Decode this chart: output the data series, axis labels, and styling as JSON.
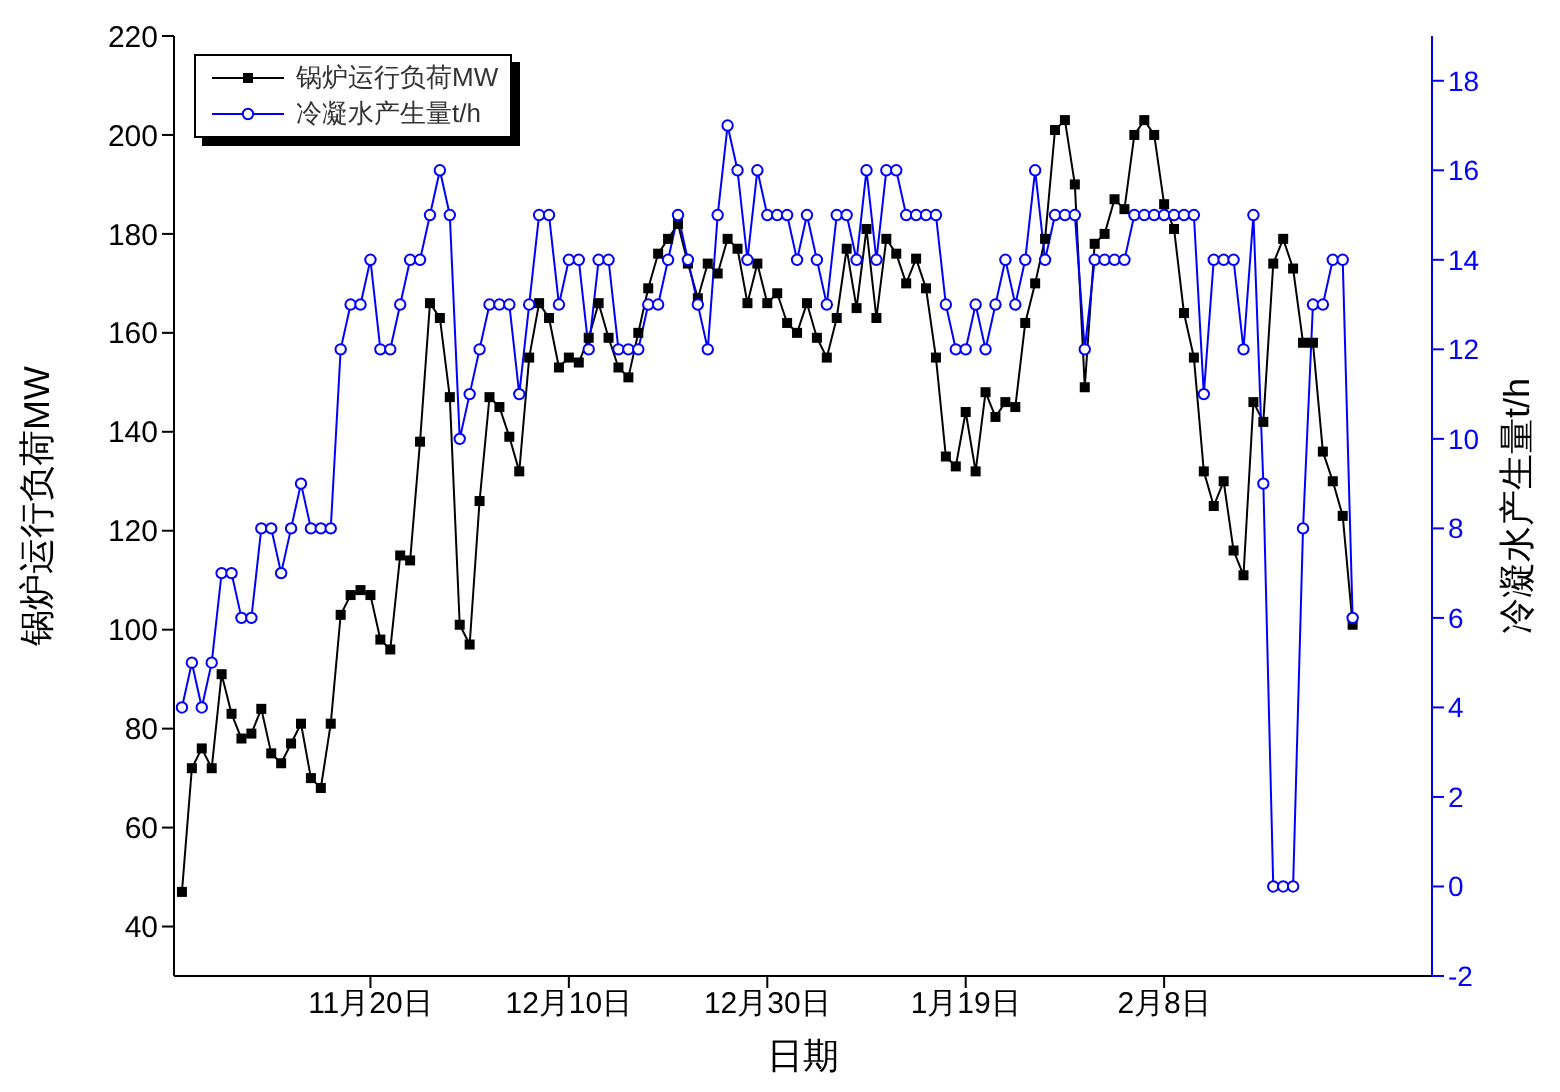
{
  "chart_data": {
    "type": "line",
    "xlabel": "日期",
    "ylabel": "锅炉运行负荷MW",
    "y2label": "冷凝水产生量t/h",
    "categories": [
      null,
      null,
      null,
      null,
      null,
      null,
      null,
      null,
      null,
      null,
      null,
      null,
      null,
      null,
      null,
      null,
      null,
      null,
      null,
      "11月20日",
      null,
      null,
      null,
      null,
      null,
      null,
      null,
      null,
      null,
      null,
      null,
      null,
      null,
      null,
      null,
      null,
      null,
      null,
      null,
      "12月10日",
      null,
      null,
      null,
      null,
      null,
      null,
      null,
      null,
      null,
      null,
      null,
      null,
      null,
      null,
      null,
      null,
      null,
      null,
      null,
      "12月30日",
      null,
      null,
      null,
      null,
      null,
      null,
      null,
      null,
      null,
      null,
      null,
      null,
      null,
      null,
      null,
      null,
      null,
      null,
      null,
      "1月19日",
      null,
      null,
      null,
      null,
      null,
      null,
      null,
      null,
      null,
      null,
      null,
      null,
      null,
      null,
      null,
      null,
      null,
      null,
      null,
      "2月8日",
      null,
      null,
      null,
      null,
      null,
      null,
      null,
      null,
      null,
      null,
      null,
      null,
      null,
      null,
      null,
      null,
      null,
      null,
      null
    ],
    "series": [
      {
        "name": "锅炉运行负荷MW",
        "color": "#000000",
        "marker": "square",
        "values": [
          47,
          72,
          76,
          72,
          91,
          83,
          78,
          79,
          84,
          75,
          73,
          77,
          81,
          70,
          68,
          81,
          103,
          107,
          108,
          107,
          98,
          96,
          115,
          114,
          138,
          166,
          163,
          147,
          101,
          97,
          126,
          147,
          145,
          139,
          132,
          155,
          166,
          163,
          153,
          155,
          154,
          159,
          166,
          159,
          153,
          151,
          160,
          169,
          176,
          179,
          182,
          174,
          167,
          174,
          172,
          179,
          177,
          166,
          174,
          166,
          168,
          162,
          160,
          166,
          159,
          155,
          163,
          177,
          165,
          181,
          163,
          179,
          176,
          170,
          175,
          169,
          155,
          135,
          133,
          144,
          132,
          148,
          143,
          146,
          145,
          162,
          170,
          179,
          201,
          203,
          190,
          149,
          178,
          180,
          187,
          185,
          200,
          203,
          200,
          186,
          181,
          164,
          155,
          132,
          125,
          130,
          116,
          111,
          146,
          142,
          174,
          179,
          173,
          158,
          158,
          136,
          130,
          123,
          101
        ]
      },
      {
        "name": "冷凝水产生量t/h",
        "color": "#0000ff",
        "marker": "circle",
        "axis": "y2",
        "values": [
          4,
          5,
          4,
          5,
          7,
          7,
          6,
          6,
          8,
          8,
          7,
          8,
          9,
          8,
          8,
          8,
          12,
          13,
          13,
          14,
          12,
          12,
          13,
          14,
          14,
          15,
          16,
          15,
          10,
          11,
          12,
          13,
          13,
          13,
          11,
          13,
          15,
          15,
          13,
          14,
          14,
          12,
          14,
          14,
          12,
          12,
          12,
          13,
          13,
          14,
          15,
          14,
          13,
          12,
          15,
          17,
          16,
          14,
          16,
          15,
          15,
          15,
          14,
          15,
          14,
          13,
          15,
          15,
          14,
          16,
          14,
          16,
          16,
          15,
          15,
          15,
          15,
          13,
          12,
          12,
          13,
          12,
          13,
          14,
          13,
          14,
          16,
          14,
          15,
          15,
          15,
          12,
          14,
          14,
          14,
          14,
          15,
          15,
          15,
          15,
          15,
          15,
          15,
          11,
          14,
          14,
          14,
          12,
          15,
          9,
          0,
          0,
          0,
          8,
          13,
          13,
          14,
          14,
          6
        ]
      }
    ],
    "ylim": [
      30,
      220
    ],
    "yticks": [
      40,
      60,
      80,
      100,
      120,
      140,
      160,
      180,
      200,
      220
    ],
    "y2lim": [
      -2,
      19
    ],
    "y2ticks": [
      -2,
      0,
      2,
      4,
      6,
      8,
      10,
      12,
      14,
      16,
      18
    ],
    "grid": false,
    "legend": "top left",
    "line_style": "solid"
  }
}
